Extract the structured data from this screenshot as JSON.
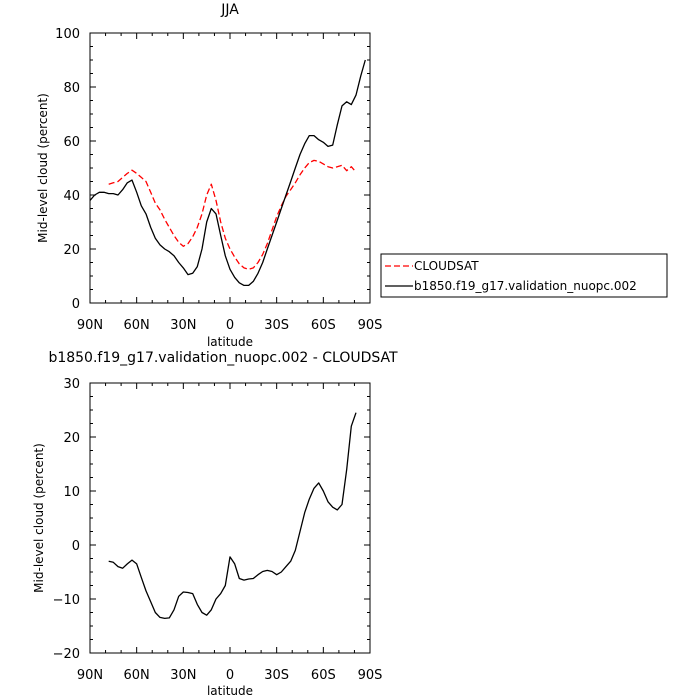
{
  "chart_data": [
    {
      "type": "line",
      "title": "JJA",
      "xlabel": "latitude",
      "ylabel": "Mid-level cloud (percent)",
      "x_tick_labels": [
        "90N",
        "60N",
        "30N",
        "0",
        "30S",
        "60S",
        "90S"
      ],
      "x_tick_values": [
        90,
        60,
        30,
        0,
        -30,
        -60,
        -90
      ],
      "xlim": [
        90,
        -90
      ],
      "ylim": [
        0,
        100
      ],
      "y_ticks": [
        0,
        20,
        40,
        60,
        80,
        100
      ],
      "legend_position": "right",
      "grid": false,
      "series": [
        {
          "name": "CLOUDSAT",
          "color": "#ff0000",
          "dash": "dashed",
          "x": [
            78,
            75,
            72,
            69,
            66,
            63,
            60,
            57,
            54,
            51,
            48,
            45,
            42,
            39,
            36,
            33,
            30,
            27,
            24,
            21,
            18,
            15,
            12,
            9,
            6,
            3,
            0,
            -3,
            -6,
            -9,
            -12,
            -15,
            -18,
            -21,
            -24,
            -27,
            -30,
            -33,
            -36,
            -39,
            -42,
            -45,
            -48,
            -51,
            -54,
            -57,
            -60,
            -63,
            -66,
            -69,
            -72,
            -75,
            -78,
            -81
          ],
          "y": [
            44,
            44.5,
            45,
            46.5,
            48,
            49.2,
            48,
            46.5,
            45,
            41,
            37,
            34.5,
            31,
            28,
            25,
            22.5,
            21,
            22,
            24.5,
            28,
            33,
            40,
            44,
            38,
            30,
            24,
            20,
            17,
            14.5,
            13,
            12.5,
            13,
            15,
            18,
            22,
            27,
            32,
            36,
            39.5,
            42,
            44.5,
            47.5,
            50,
            52,
            52.8,
            52.5,
            51.5,
            50.5,
            50,
            50.5,
            51,
            49,
            50.5,
            48.5
          ]
        },
        {
          "name": "b1850.f19_g17.validation_nuopc.002",
          "color": "#000000",
          "dash": "solid",
          "x": [
            90,
            87,
            84,
            81,
            78,
            75,
            72,
            69,
            66,
            63,
            60,
            57,
            54,
            51,
            48,
            45,
            42,
            39,
            36,
            33,
            30,
            27,
            24,
            21,
            18,
            15,
            12,
            9,
            6,
            3,
            0,
            -3,
            -6,
            -9,
            -12,
            -15,
            -18,
            -21,
            -24,
            -27,
            -30,
            -33,
            -36,
            -39,
            -42,
            -45,
            -48,
            -51,
            -54,
            -57,
            -60,
            -63,
            -66,
            -69,
            -72,
            -75,
            -78,
            -81,
            -84,
            -87
          ],
          "y": [
            38,
            40,
            41,
            41,
            40.5,
            40.5,
            40,
            42,
            44.5,
            45.5,
            41,
            36,
            33,
            28,
            24,
            21.5,
            20,
            19,
            17.5,
            15,
            13,
            10.5,
            11,
            13.5,
            20,
            30,
            35,
            33,
            25,
            17.5,
            12.5,
            9.5,
            7.5,
            6.5,
            6.5,
            8,
            11,
            15,
            20,
            25,
            30,
            35,
            40,
            45,
            50,
            55,
            59,
            62,
            62,
            60.5,
            59.5,
            58,
            58.5,
            66,
            73,
            74.5,
            73.5,
            77,
            84,
            90
          ]
        }
      ]
    },
    {
      "type": "line",
      "title": "b1850.f19_g17.validation_nuopc.002 - CLOUDSAT",
      "xlabel": "latitude",
      "ylabel": "Mid-level cloud (percent)",
      "x_tick_labels": [
        "90N",
        "60N",
        "30N",
        "0",
        "30S",
        "60S",
        "90S"
      ],
      "x_tick_values": [
        90,
        60,
        30,
        0,
        -30,
        -60,
        -90
      ],
      "xlim": [
        90,
        -90
      ],
      "ylim": [
        -20,
        30
      ],
      "y_ticks": [
        -20,
        -10,
        0,
        10,
        20,
        30
      ],
      "grid": false,
      "series": [
        {
          "color": "#000000",
          "dash": "solid",
          "x": [
            78,
            75,
            72,
            69,
            66,
            63,
            60,
            57,
            54,
            51,
            48,
            45,
            42,
            39,
            36,
            33,
            30,
            27,
            24,
            21,
            18,
            15,
            12,
            9,
            6,
            3,
            0,
            -3,
            -6,
            -9,
            -12,
            -15,
            -18,
            -21,
            -24,
            -27,
            -30,
            -33,
            -36,
            -39,
            -42,
            -45,
            -48,
            -51,
            -54,
            -57,
            -60,
            -63,
            -66,
            -69,
            -72,
            -75,
            -78,
            -81
          ],
          "y": [
            -3,
            -3.2,
            -4,
            -4.3,
            -3.5,
            -2.8,
            -3.5,
            -6,
            -8.5,
            -10.5,
            -12.5,
            -13.4,
            -13.6,
            -13.5,
            -12,
            -9.5,
            -8.7,
            -8.8,
            -9,
            -11,
            -12.5,
            -13,
            -12,
            -10,
            -9,
            -7.5,
            -2.2,
            -3.5,
            -6.2,
            -6.5,
            -6.3,
            -6.2,
            -5.5,
            -4.9,
            -4.7,
            -4.9,
            -5.5,
            -5,
            -4,
            -3,
            -1,
            2.5,
            6,
            8.5,
            10.5,
            11.5,
            10,
            8,
            7,
            6.5,
            7.5,
            14,
            22,
            24.5
          ]
        }
      ]
    }
  ]
}
